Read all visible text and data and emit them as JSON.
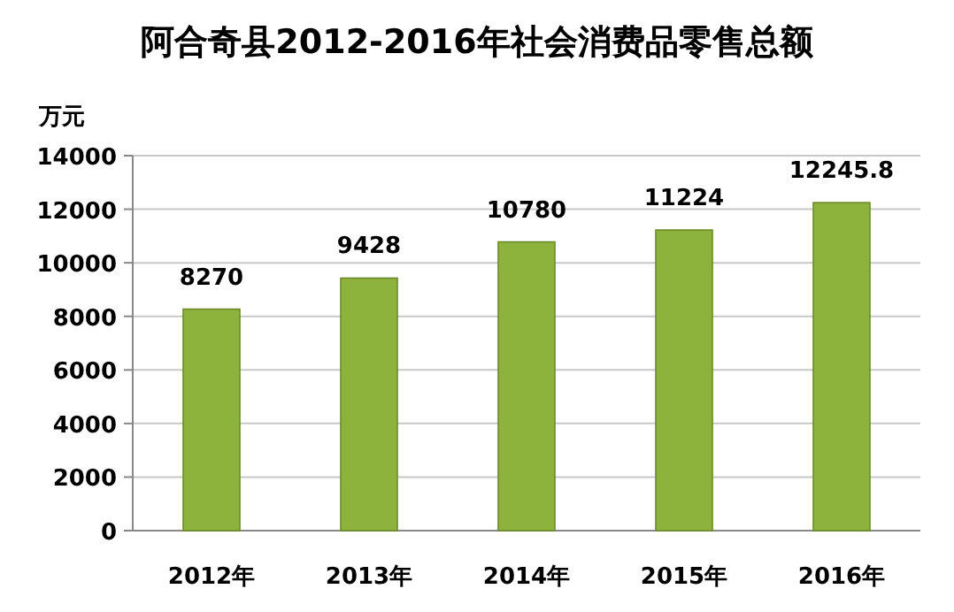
{
  "chart_data": {
    "type": "bar",
    "title": "阿合奇县2012-2016年社会消费品零售总额",
    "ylabel": "万元",
    "categories": [
      "2012年",
      "2013年",
      "2014年",
      "2015年",
      "2016年"
    ],
    "values": [
      8270,
      9428,
      10780,
      11224,
      12245.8
    ],
    "color": "#8db33c",
    "ylim": [
      0,
      14000
    ],
    "yticks": [
      0,
      2000,
      4000,
      6000,
      8000,
      10000,
      12000,
      14000
    ],
    "grid": "y",
    "data_labels": true
  }
}
